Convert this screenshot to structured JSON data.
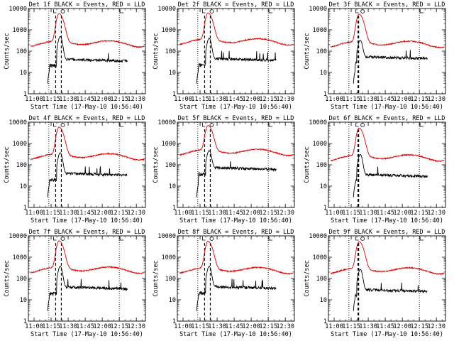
{
  "chart_data": [
    {
      "type": "line",
      "title": "Det 1f BLACK = Events, RED = LLD",
      "xlabel": "Start Time (17-May-10 10:56:40)",
      "ylabel": "Counts/sec",
      "yscale": "log",
      "ylim": [
        1,
        10000
      ],
      "xlim": [
        -5,
        98
      ],
      "xticks": [
        "11:00",
        "11:15",
        "11:30",
        "11:45",
        "12:00",
        "12:15",
        "12:30"
      ],
      "yticks": [
        "1",
        "10",
        "100",
        "1000",
        "10000"
      ],
      "red_base": 240,
      "red_peak": 5500,
      "black_base": 42,
      "black_spike": 150,
      "peak_time": 22,
      "black_start": 12,
      "black_end": 82,
      "dash_lines": [
        19,
        24
      ],
      "dot_lines": [
        13,
        75
      ]
    },
    {
      "type": "line",
      "title": "Det 2f BLACK = Events, RED = LLD",
      "xlabel": "Start Time (17-May-10 10:56:40)",
      "ylabel": "Counts/sec",
      "yscale": "log",
      "ylim": [
        1,
        10000
      ],
      "xlim": [
        -5,
        98
      ],
      "xticks": [
        "11:00",
        "11:15",
        "11:30",
        "11:45",
        "12:00",
        "12:15",
        "12:30"
      ],
      "yticks": [
        "1",
        "10",
        "100",
        "1000",
        "10000"
      ],
      "red_base": 300,
      "red_peak": 5800,
      "black_base": 45,
      "black_spike": 120,
      "peak_time": 22,
      "black_start": 12,
      "black_end": 82,
      "dash_lines": [
        19,
        24
      ],
      "dot_lines": [
        13,
        75
      ]
    },
    {
      "type": "line",
      "title": "Det 3f BLACK = Events, RED = LLD",
      "xlabel": "Start Time (17-May-10 10:56:40)",
      "ylabel": "Counts/sec",
      "yscale": "log",
      "ylim": [
        1,
        10000
      ],
      "xlim": [
        -5,
        98
      ],
      "xticks": [
        "11:00",
        "11:15",
        "11:30",
        "11:45",
        "12:00",
        "12:15",
        "12:30"
      ],
      "yticks": [
        "1",
        "10",
        "100",
        "1000",
        "10000"
      ],
      "red_base": 230,
      "red_peak": 5200,
      "black_base": 55,
      "black_spike": 90,
      "peak_time": 22,
      "black_start": 17,
      "black_end": 82,
      "dash_lines": [
        21,
        21.6
      ],
      "dot_lines": [
        13,
        75
      ]
    },
    {
      "type": "line",
      "title": "Det 4f BLACK = Events, RED = LLD",
      "xlabel": "Start Time (17-May-10 10:56:40)",
      "ylabel": "Counts/sec",
      "yscale": "log",
      "ylim": [
        1,
        10000
      ],
      "xlim": [
        -5,
        98
      ],
      "xticks": [
        "11:00",
        "11:15",
        "11:30",
        "11:45",
        "12:00",
        "12:15",
        "12:30"
      ],
      "yticks": [
        "1",
        "10",
        "100",
        "1000",
        "10000"
      ],
      "red_base": 260,
      "red_peak": 5600,
      "black_base": 40,
      "black_spike": 110,
      "peak_time": 22,
      "black_start": 12,
      "black_end": 82,
      "dash_lines": [
        19,
        24
      ],
      "dot_lines": [
        13,
        75
      ]
    },
    {
      "type": "line",
      "title": "Det 5f BLACK = Events, RED = LLD",
      "xlabel": "Start Time (17-May-10 10:56:40)",
      "ylabel": "Counts/sec",
      "yscale": "log",
      "ylim": [
        1,
        10000
      ],
      "xlim": [
        -5,
        98
      ],
      "xticks": [
        "11:00",
        "11:15",
        "11:30",
        "11:45",
        "12:00",
        "12:15",
        "12:30"
      ],
      "yticks": [
        "1",
        "10",
        "100",
        "1000",
        "10000"
      ],
      "red_base": 420,
      "red_peak": 6500,
      "black_base": 75,
      "black_spike": 130,
      "peak_time": 22,
      "black_start": 12,
      "black_end": 82,
      "dash_lines": [
        19,
        24
      ],
      "dot_lines": [
        13,
        75
      ]
    },
    {
      "type": "line",
      "title": "Det 6f BLACK = Events, RED = LLD",
      "xlabel": "Start Time (17-May-10 10:56:40)",
      "ylabel": "Counts/sec",
      "yscale": "log",
      "ylim": [
        1,
        10000
      ],
      "xlim": [
        -5,
        98
      ],
      "xticks": [
        "11:00",
        "11:15",
        "11:30",
        "11:45",
        "12:00",
        "12:15",
        "12:30"
      ],
      "yticks": [
        "1",
        "10",
        "100",
        "1000",
        "10000"
      ],
      "red_base": 230,
      "red_peak": 5000,
      "black_base": 35,
      "black_spike": 90,
      "peak_time": 22,
      "black_start": 17,
      "black_end": 82,
      "dash_lines": [
        21,
        21.6
      ],
      "dot_lines": [
        13,
        75
      ]
    },
    {
      "type": "line",
      "title": "Det 7f BLACK = Events, RED = LLD",
      "xlabel": "Start Time (17-May-10 10:56:40)",
      "ylabel": "Counts/sec",
      "yscale": "log",
      "ylim": [
        1,
        10000
      ],
      "xlim": [
        -5,
        98
      ],
      "xticks": [
        "11:00",
        "11:15",
        "11:30",
        "11:45",
        "12:00",
        "12:15",
        "12:30"
      ],
      "yticks": [
        "1",
        "10",
        "100",
        "1000",
        "10000"
      ],
      "red_base": 270,
      "red_peak": 5500,
      "black_base": 40,
      "black_spike": 110,
      "peak_time": 22,
      "black_start": 12,
      "black_end": 82,
      "dash_lines": [
        19,
        24
      ],
      "dot_lines": [
        13,
        75
      ]
    },
    {
      "type": "line",
      "title": "Det 8f BLACK = Events, RED = LLD",
      "xlabel": "Start Time (17-May-10 10:56:40)",
      "ylabel": "Counts/sec",
      "yscale": "log",
      "ylim": [
        1,
        10000
      ],
      "xlim": [
        -5,
        98
      ],
      "xticks": [
        "11:00",
        "11:15",
        "11:30",
        "11:45",
        "12:00",
        "12:15",
        "12:30"
      ],
      "yticks": [
        "1",
        "10",
        "100",
        "1000",
        "10000"
      ],
      "red_base": 260,
      "red_peak": 5300,
      "black_base": 42,
      "black_spike": 110,
      "peak_time": 22,
      "black_start": 12,
      "black_end": 82,
      "dash_lines": [
        19,
        24
      ],
      "dot_lines": [
        13,
        75
      ]
    },
    {
      "type": "line",
      "title": "Det 9f BLACK = Events, RED = LLD",
      "xlabel": "Start Time (17-May-10 10:56:40)",
      "ylabel": "Counts/sec",
      "yscale": "log",
      "ylim": [
        1,
        10000
      ],
      "xlim": [
        -5,
        98
      ],
      "xticks": [
        "11:00",
        "11:15",
        "11:30",
        "11:45",
        "12:00",
        "12:15",
        "12:30"
      ],
      "yticks": [
        "1",
        "10",
        "100",
        "1000",
        "10000"
      ],
      "red_base": 250,
      "red_peak": 5000,
      "black_base": 30,
      "black_spike": 80,
      "peak_time": 22,
      "black_start": 17,
      "black_end": 82,
      "dash_lines": [
        21,
        21.6
      ],
      "dot_lines": [
        13,
        75
      ]
    }
  ],
  "colors": {
    "events": "#000000",
    "lld": "#e00000"
  }
}
